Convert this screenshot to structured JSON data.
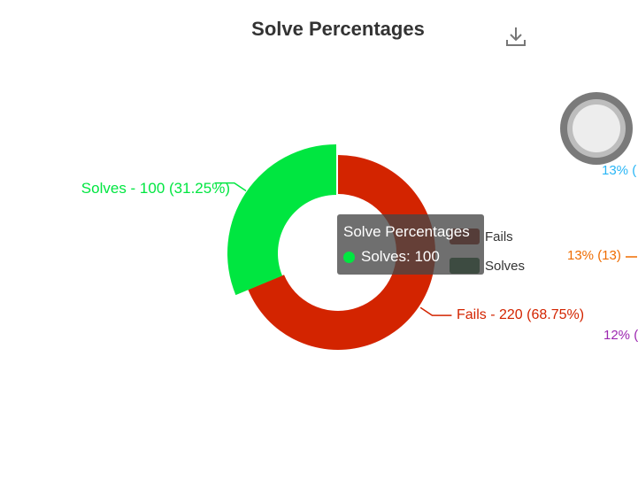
{
  "chart_data": {
    "type": "pie",
    "title": "Solve Percentages",
    "categories": [
      "Fails",
      "Solves"
    ],
    "values": [
      220,
      100
    ],
    "colors": [
      "#d32400",
      "#00e640"
    ],
    "slice_labels": [
      "Fails - 220 (68.75%)",
      "Solves - 100 (31.25%)"
    ],
    "legend": {
      "position": "right",
      "entries": [
        "Fails",
        "Solves"
      ],
      "colors": [
        "#8b1e0c",
        "#1f5e2e"
      ]
    },
    "tooltip": {
      "title": "Solve Percentages",
      "text": "Solves: 100",
      "dot_color": "#00e640"
    }
  },
  "toolbar": {
    "download_icon": "download-icon"
  },
  "loader": {
    "icon": "loading-spinner-icon"
  },
  "side_labels": [
    {
      "text": "13% (",
      "color": "#29b6f6"
    },
    {
      "text": "13% (13)",
      "color": "#ef6c00"
    },
    {
      "text": "12% (",
      "color": "#9c27b0"
    }
  ]
}
